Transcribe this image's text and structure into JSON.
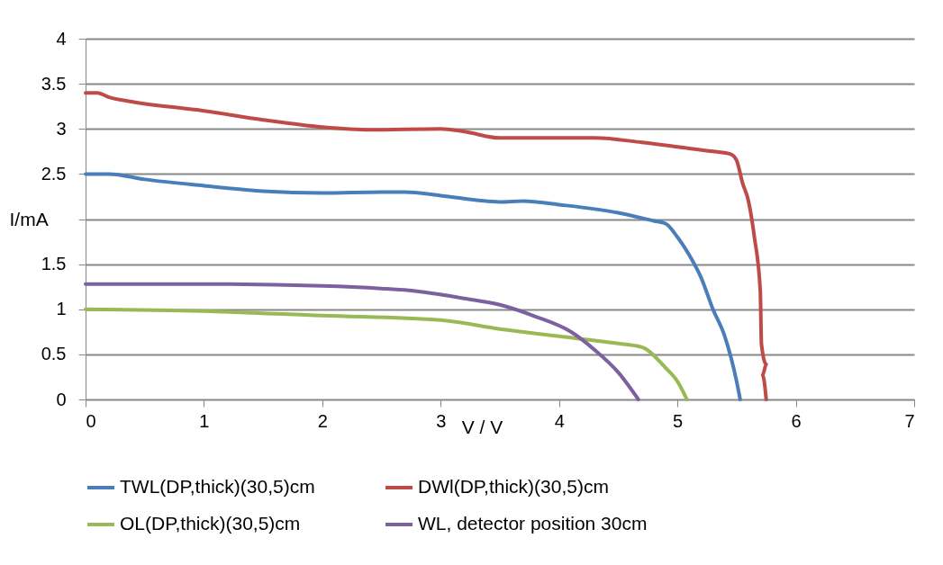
{
  "chart_data": {
    "type": "line",
    "xlabel": "V / V",
    "ylabel": "I/mA",
    "xlim": [
      0,
      7
    ],
    "xticks": [
      0,
      1,
      2,
      3,
      4,
      5,
      6,
      7
    ],
    "ylim": [
      0,
      4
    ],
    "yticks": [
      0,
      0.5,
      1,
      1.5,
      {
        "value": 2,
        "label": null
      },
      2.5,
      3,
      3.5,
      4
    ],
    "grid": "y",
    "legend": "bottom",
    "series": [
      {
        "name": "TWL(DP,thick)(30,5)cm",
        "color": "#4a7ebb",
        "x": [
          0,
          0.2,
          0.5,
          1,
          1.5,
          2,
          2.5,
          2.7,
          3,
          3.5,
          3.7,
          4,
          4.5,
          4.8,
          4.9,
          5.0,
          5.1,
          5.2,
          5.3,
          5.4,
          5.5,
          5.53
        ],
        "values": [
          2.5,
          2.5,
          2.44,
          2.37,
          2.31,
          2.29,
          2.3,
          2.3,
          2.26,
          2.19,
          2.2,
          2.16,
          2.07,
          1.98,
          1.95,
          1.8,
          1.6,
          1.35,
          1.0,
          0.7,
          0.2,
          0
        ]
      },
      {
        "name": "DWl(DP,thick)(30,5)cm",
        "color": "#be4b48",
        "x": [
          0,
          0.1,
          0.2,
          0.4,
          1,
          1.5,
          2,
          2.4,
          3,
          3.2,
          3.5,
          4,
          4.3,
          4.7,
          5,
          5.3,
          5.45,
          5.5,
          5.55,
          5.6,
          5.65,
          5.7,
          5.71,
          5.75,
          5.72,
          5.75
        ],
        "values": [
          3.4,
          3.4,
          3.35,
          3.3,
          3.2,
          3.1,
          3.02,
          2.99,
          3.0,
          2.97,
          2.9,
          2.9,
          2.9,
          2.85,
          2.8,
          2.75,
          2.72,
          2.65,
          2.4,
          2.2,
          1.8,
          1.2,
          0.61,
          0.39,
          0.27,
          0
        ]
      },
      {
        "name": "OL(DP,thick)(30,5)cm",
        "color": "#98b954",
        "x": [
          0,
          1,
          2,
          3,
          3.5,
          4,
          4.5,
          4.7,
          4.9,
          5.0,
          5.08
        ],
        "values": [
          1.0,
          0.98,
          0.93,
          0.88,
          0.78,
          0.7,
          0.62,
          0.58,
          0.35,
          0.2,
          0
        ]
      },
      {
        "name": "WL, detector position 30cm",
        "color": "#7d60a0",
        "x": [
          0,
          1,
          2,
          2.5,
          2.8,
          3.2,
          3.5,
          3.8,
          4.1,
          4.3,
          4.5,
          4.67
        ],
        "values": [
          1.28,
          1.28,
          1.26,
          1.23,
          1.2,
          1.12,
          1.05,
          0.92,
          0.75,
          0.55,
          0.3,
          0
        ]
      }
    ]
  }
}
